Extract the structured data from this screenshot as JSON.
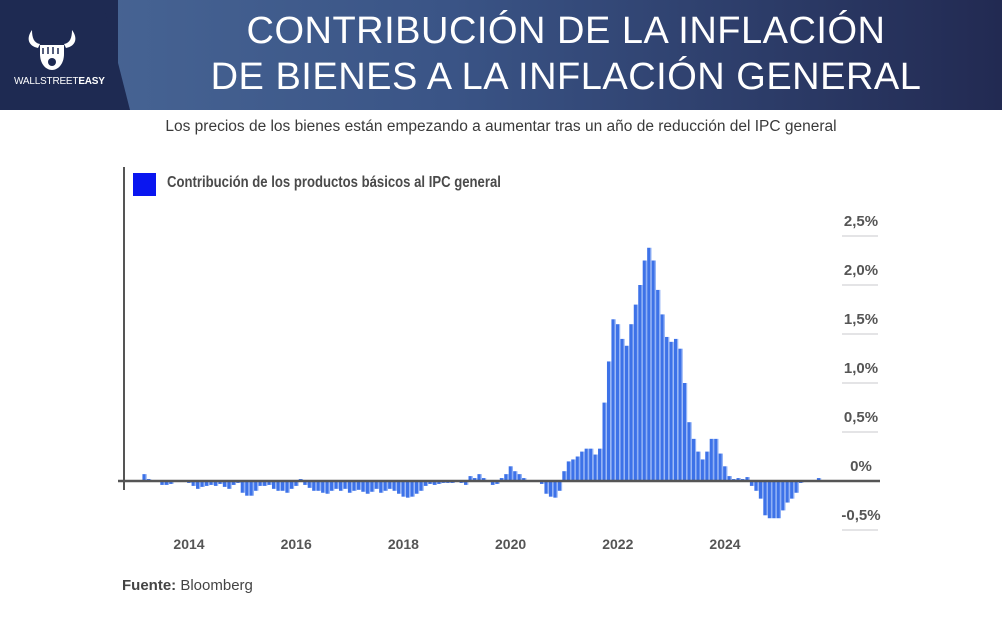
{
  "header": {
    "brand": {
      "name_light": "WALLSTREET",
      "name_bold": "EASY",
      "icon": "bull-fist-icon"
    },
    "title_line1": "CONTRIBUCIÓN DE LA INFLACIÓN",
    "title_line2": "DE BIENES A LA INFLACIÓN GENERAL"
  },
  "subtitle": "Los precios de los bienes están empezando a aumentar tras un año de reducción del IPC general",
  "source": {
    "label": "Fuente:",
    "value": "Bloomberg"
  },
  "colors": {
    "bar": "#3d72e8",
    "bar_light": "#8fb0f5",
    "legend": "#0a16f0",
    "axis": "#555555",
    "grid": "#c8c8cc"
  },
  "chart_data": {
    "type": "bar",
    "title": "",
    "legend": [
      {
        "label": "Contribución de los productos básicos al IPC general",
        "color": "#0a16f0"
      }
    ],
    "legend_position": "top-left",
    "xlabel": "",
    "ylabel": "",
    "y_axis_side": "right",
    "ylim": [
      -0.5,
      2.5
    ],
    "yticks": [
      2.5,
      2.0,
      1.5,
      1.0,
      0.5,
      0,
      -0.5
    ],
    "ytick_labels": [
      "2,5%",
      "2,0%",
      "1,5%",
      "1,0%",
      "0,5%",
      "0%",
      "-0,5%"
    ],
    "xtick_labels": [
      "2014",
      "2016",
      "2018",
      "2020",
      "2022",
      "2024"
    ],
    "xtick_years": [
      2014,
      2016,
      2018,
      2020,
      2022,
      2024
    ],
    "x_start": "2013-03",
    "x_frequency": "monthly",
    "values": [
      0.07,
      0.02,
      0.0,
      -0.01,
      -0.04,
      -0.04,
      -0.03,
      0.0,
      -0.01,
      -0.01,
      -0.02,
      -0.05,
      -0.08,
      -0.06,
      -0.05,
      -0.04,
      -0.05,
      -0.03,
      -0.06,
      -0.08,
      -0.04,
      -0.02,
      -0.12,
      -0.15,
      -0.15,
      -0.1,
      -0.05,
      -0.05,
      -0.04,
      -0.08,
      -0.1,
      -0.1,
      -0.12,
      -0.08,
      -0.05,
      0.02,
      -0.04,
      -0.07,
      -0.1,
      -0.1,
      -0.12,
      -0.13,
      -0.1,
      -0.08,
      -0.1,
      -0.08,
      -0.12,
      -0.1,
      -0.09,
      -0.11,
      -0.13,
      -0.11,
      -0.08,
      -0.12,
      -0.1,
      -0.08,
      -0.1,
      -0.13,
      -0.16,
      -0.17,
      -0.16,
      -0.13,
      -0.1,
      -0.05,
      -0.03,
      -0.04,
      -0.03,
      -0.02,
      -0.02,
      -0.02,
      0.0,
      -0.02,
      -0.04,
      0.05,
      0.03,
      0.07,
      0.03,
      0.0,
      -0.04,
      -0.03,
      0.03,
      0.07,
      0.15,
      0.1,
      0.07,
      0.03,
      0.01,
      -0.01,
      0.01,
      -0.03,
      -0.13,
      -0.16,
      -0.17,
      -0.1,
      0.1,
      0.2,
      0.22,
      0.25,
      0.3,
      0.33,
      0.33,
      0.27,
      0.33,
      0.8,
      1.22,
      1.65,
      1.6,
      1.45,
      1.38,
      1.6,
      1.8,
      2.0,
      2.25,
      2.38,
      2.25,
      1.95,
      1.7,
      1.47,
      1.42,
      1.45,
      1.35,
      1.0,
      0.6,
      0.43,
      0.3,
      0.22,
      0.3,
      0.43,
      0.43,
      0.28,
      0.15,
      0.05,
      0.02,
      0.03,
      0.02,
      0.04,
      -0.05,
      -0.1,
      -0.18,
      -0.35,
      -0.38,
      -0.38,
      -0.38,
      -0.3,
      -0.22,
      -0.18,
      -0.12,
      -0.02,
      0.0,
      0.0,
      0.0,
      0.03
    ]
  }
}
